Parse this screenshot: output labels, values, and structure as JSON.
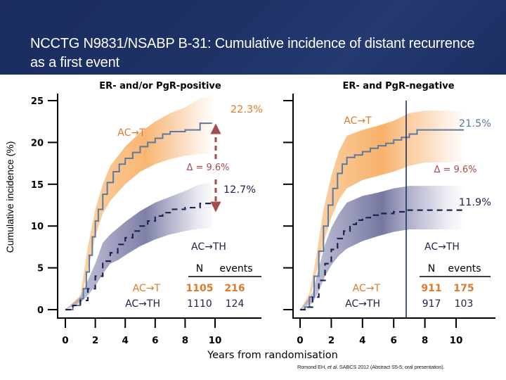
{
  "header": {
    "title": "NCCTG N9831/NSABP B-31: Cumulative incidence of distant recurrence as a first event",
    "background_color": "#1e3266",
    "text_color": "#ffffff"
  },
  "citation": {
    "before": "Romond EH, ",
    "italic": "et al",
    "after": ". SABCS 2012 (Abstract S5-5; oral presentation)."
  },
  "colors": {
    "act_line": "#5d7a9c",
    "act_band": "#f7a95a",
    "acth_line": "#1f2156",
    "acth_band": "#5d5f8f",
    "act_text": "#e07a2a",
    "acth_text": "#22234f",
    "delta_text": "#a64b4b",
    "axis": "#000000"
  },
  "chart_data": [
    {
      "type": "line",
      "title": "ER- and/or PgR-positive",
      "xlabel": "Years from randomisation",
      "ylabel": "Cumulative incidence (%)",
      "xlim": [
        0,
        12.5
      ],
      "ylim": [
        0,
        25
      ],
      "x_ticks": [
        0,
        2,
        4,
        6,
        8,
        10
      ],
      "y_ticks": [
        0,
        5,
        10,
        15,
        20,
        25
      ],
      "grid": false,
      "series": [
        {
          "name": "AC→T",
          "style": "solid-step",
          "end_label": "22.3%",
          "points": [
            [
              0,
              0
            ],
            [
              0.5,
              0.5
            ],
            [
              1,
              1.3
            ],
            [
              1.2,
              2.5
            ],
            [
              1.4,
              4.5
            ],
            [
              1.6,
              6.5
            ],
            [
              1.8,
              8.7
            ],
            [
              2,
              10.6
            ],
            [
              2.2,
              12
            ],
            [
              2.5,
              13.8
            ],
            [
              2.8,
              15.2
            ],
            [
              3.2,
              16.5
            ],
            [
              3.6,
              17.4
            ],
            [
              4,
              18.1
            ],
            [
              4.5,
              18.8
            ],
            [
              5,
              19.5
            ],
            [
              5.5,
              20
            ],
            [
              6,
              20.5
            ],
            [
              6.5,
              21
            ],
            [
              7,
              21.3
            ],
            [
              8,
              21.5
            ],
            [
              9,
              22.3
            ],
            [
              9.8,
              22.3
            ]
          ],
          "ci_lower": [
            [
              0,
              0
            ],
            [
              1,
              1
            ],
            [
              1.5,
              4.5
            ],
            [
              2,
              8.8
            ],
            [
              2.5,
              11.5
            ],
            [
              3,
              13
            ],
            [
              4,
              15
            ],
            [
              5,
              16.5
            ],
            [
              6,
              17.4
            ],
            [
              7,
              18
            ],
            [
              8,
              18.4
            ],
            [
              9,
              18.6
            ],
            [
              9.8,
              18.6
            ]
          ],
          "ci_upper": [
            [
              0,
              0
            ],
            [
              1,
              1.7
            ],
            [
              1.5,
              7.5
            ],
            [
              2,
              12
            ],
            [
              2.5,
              15
            ],
            [
              3,
              17.2
            ],
            [
              4,
              19.5
            ],
            [
              5,
              21.2
            ],
            [
              6,
              22.5
            ],
            [
              7,
              23.5
            ],
            [
              8,
              24.2
            ],
            [
              9,
              25.3
            ],
            [
              9.8,
              25.5
            ]
          ]
        },
        {
          "name": "AC→TH",
          "style": "dashed-step",
          "end_label": "12.7%",
          "points": [
            [
              0,
              0
            ],
            [
              0.5,
              0.5
            ],
            [
              1,
              1.1
            ],
            [
              1.5,
              2.5
            ],
            [
              2,
              4
            ],
            [
              2.5,
              5.8
            ],
            [
              3,
              6.8
            ],
            [
              3.5,
              7.8
            ],
            [
              4,
              8.6
            ],
            [
              4.5,
              9.4
            ],
            [
              5,
              10
            ],
            [
              5.5,
              10.6
            ],
            [
              6,
              11.2
            ],
            [
              6.5,
              11.6
            ],
            [
              7,
              12
            ],
            [
              8,
              12.2
            ],
            [
              9,
              12.7
            ],
            [
              9.8,
              12.7
            ]
          ],
          "ci_lower": [
            [
              0,
              0
            ],
            [
              1,
              0.8
            ],
            [
              1.5,
              1.7
            ],
            [
              2,
              2.8
            ],
            [
              2.5,
              4.3
            ],
            [
              3,
              5.5
            ],
            [
              3.5,
              5.9
            ],
            [
              4,
              6.5
            ],
            [
              5,
              7.6
            ],
            [
              6,
              8.4
            ],
            [
              7,
              9
            ],
            [
              8,
              9.4
            ],
            [
              9,
              9.7
            ],
            [
              9.8,
              9.7
            ]
          ],
          "ci_upper": [
            [
              0,
              0
            ],
            [
              1,
              1.5
            ],
            [
              1.5,
              3.5
            ],
            [
              2,
              5.5
            ],
            [
              2.5,
              8
            ],
            [
              3,
              9
            ],
            [
              4,
              10.5
            ],
            [
              5,
              11.8
            ],
            [
              6,
              12.8
            ],
            [
              7,
              13.5
            ],
            [
              8,
              14.2
            ],
            [
              9,
              15
            ],
            [
              9.8,
              15.2
            ]
          ]
        }
      ],
      "annotations": {
        "act_label": "AC→T",
        "acth_label": "AC→TH",
        "delta": "Δ = 9.6%",
        "table_headers": [
          "N",
          "events"
        ],
        "table_rows": [
          {
            "arm": "AC→T",
            "n": "1105",
            "events": "216"
          },
          {
            "arm": "AC→TH",
            "n": "1110",
            "events": "124"
          }
        ]
      }
    },
    {
      "type": "line",
      "title": "ER- and PgR-negative",
      "xlabel": "Years from randomisation",
      "ylabel": "Cumulative incidence (%)",
      "xlim": [
        0,
        12.5
      ],
      "ylim": [
        0,
        25
      ],
      "x_ticks": [
        0,
        2,
        4,
        6,
        8,
        10
      ],
      "y_ticks": [
        0,
        5,
        10,
        15,
        20,
        25
      ],
      "grid": false,
      "vertical_marker_x": 6.8,
      "series": [
        {
          "name": "AC→T",
          "style": "solid-step",
          "end_label": "21.5%",
          "points": [
            [
              0,
              0
            ],
            [
              0.3,
              0.3
            ],
            [
              0.6,
              1.5
            ],
            [
              0.9,
              4
            ],
            [
              1.2,
              7
            ],
            [
              1.5,
              10
            ],
            [
              1.8,
              12.5
            ],
            [
              2.1,
              14.5
            ],
            [
              2.4,
              16.3
            ],
            [
              2.7,
              17.4
            ],
            [
              3,
              18.2
            ],
            [
              3.5,
              18.5
            ],
            [
              4,
              18.9
            ],
            [
              4.5,
              19.3
            ],
            [
              5,
              19.6
            ],
            [
              5.5,
              19.9
            ],
            [
              6,
              20.3
            ],
            [
              6.5,
              20.6
            ],
            [
              7,
              21
            ],
            [
              7.5,
              21.5
            ],
            [
              10.5,
              21.5
            ]
          ],
          "ci_lower": [
            [
              0,
              0
            ],
            [
              0.6,
              1
            ],
            [
              1,
              4
            ],
            [
              1.5,
              8
            ],
            [
              2,
              11
            ],
            [
              2.5,
              13.2
            ],
            [
              3,
              14.5
            ],
            [
              4,
              15.5
            ],
            [
              5,
              16
            ],
            [
              6,
              16.5
            ],
            [
              7,
              17.2
            ],
            [
              8,
              17.6
            ],
            [
              10.5,
              17.6
            ]
          ],
          "ci_upper": [
            [
              0,
              0
            ],
            [
              0.6,
              2
            ],
            [
              1,
              6
            ],
            [
              1.5,
              12
            ],
            [
              2,
              16
            ],
            [
              2.5,
              19
            ],
            [
              3,
              20.8
            ],
            [
              4,
              21.5
            ],
            [
              5,
              22
            ],
            [
              6,
              22.6
            ],
            [
              7,
              23.5
            ],
            [
              8,
              23.8
            ],
            [
              10.5,
              23.8
            ]
          ]
        },
        {
          "name": "AC→TH",
          "style": "dashed-step",
          "end_label": "11.9%",
          "points": [
            [
              0,
              0
            ],
            [
              0.4,
              0.3
            ],
            [
              0.8,
              1.5
            ],
            [
              1.2,
              3.5
            ],
            [
              1.6,
              5.5
            ],
            [
              2,
              7.2
            ],
            [
              2.4,
              8.5
            ],
            [
              2.8,
              9.4
            ],
            [
              3.2,
              10.2
            ],
            [
              3.6,
              10.7
            ],
            [
              4,
              11
            ],
            [
              4.5,
              11.3
            ],
            [
              5,
              11.5
            ],
            [
              6,
              11.7
            ],
            [
              6.8,
              11.9
            ],
            [
              10.5,
              11.9
            ]
          ],
          "ci_lower": [
            [
              0,
              0
            ],
            [
              0.8,
              0.8
            ],
            [
              1.2,
              2.2
            ],
            [
              1.6,
              4
            ],
            [
              2,
              5.3
            ],
            [
              2.5,
              6.5
            ],
            [
              3,
              7.3
            ],
            [
              4,
              8.2
            ],
            [
              5,
              8.8
            ],
            [
              6,
              9.3
            ],
            [
              7,
              9.6
            ],
            [
              10.5,
              9.6
            ]
          ],
          "ci_upper": [
            [
              0,
              0
            ],
            [
              0.8,
              2
            ],
            [
              1.2,
              5
            ],
            [
              1.6,
              7.8
            ],
            [
              2,
              9.8
            ],
            [
              2.5,
              11.5
            ],
            [
              3,
              12.8
            ],
            [
              4,
              13.6
            ],
            [
              5,
              14
            ],
            [
              6,
              14.5
            ],
            [
              7,
              14.8
            ],
            [
              10.5,
              14.8
            ]
          ]
        }
      ],
      "annotations": {
        "act_label": "AC→T",
        "acth_label": "AC→TH",
        "delta": "Δ = 9.6%",
        "table_headers": [
          "N",
          "events"
        ],
        "table_rows": [
          {
            "arm": "AC→T",
            "n": "911",
            "events": "175"
          },
          {
            "arm": "AC→TH",
            "n": "917",
            "events": "103"
          }
        ]
      }
    }
  ]
}
